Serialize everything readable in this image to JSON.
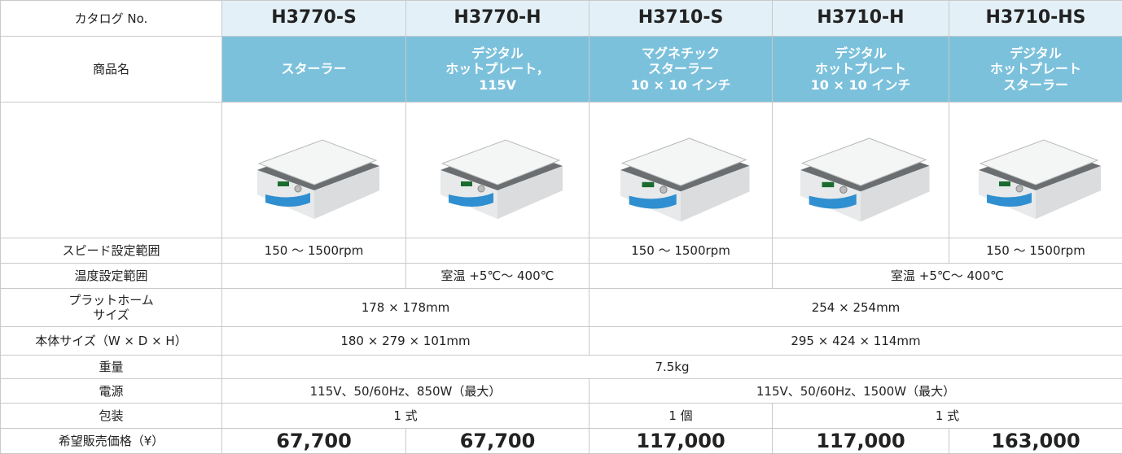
{
  "table": {
    "catalog": {
      "label": "カタログ No.",
      "items": [
        "H3770-S",
        "H3770-H",
        "H3710-S",
        "H3710-H",
        "H3710-HS"
      ]
    },
    "product_name": {
      "label": "商品名",
      "items": [
        "スターラー",
        "デジタル\nホットプレート，\n115V",
        "マグネチック\nスターラー\n10 × 10 インチ",
        "デジタル\nホットプレート\n10 × 10 インチ",
        "デジタル\nホットプレート\nスターラー"
      ]
    },
    "speed": {
      "label": "スピード設定範囲",
      "values": [
        "150 ～ 1500rpm",
        "150 ～ 1500rpm",
        "150 ～ 1500rpm"
      ]
    },
    "temperature": {
      "label": "温度設定範囲",
      "values": [
        "室温 +5℃～ 400℃",
        "室温 +5℃～ 400℃"
      ]
    },
    "platform": {
      "label": "プラットホーム\nサイズ",
      "values": [
        "178 × 178mm",
        "254 × 254mm"
      ]
    },
    "body_size": {
      "label": "本体サイズ（W × D × H）",
      "values": [
        "180 × 279 × 101mm",
        "295 × 424 × 114mm"
      ]
    },
    "weight": {
      "label": "重量",
      "values": [
        "7.5kg"
      ]
    },
    "power": {
      "label": "電源",
      "values": [
        "115V、50/60Hz、850W（最大）",
        "115V、50/60Hz、1500W（最大）"
      ]
    },
    "package": {
      "label": "包装",
      "values": [
        "1 式",
        "1 個",
        "1 式"
      ]
    },
    "price": {
      "label": "希望販売価格（¥）",
      "values": [
        "67,700",
        "67,700",
        "117,000",
        "117,000",
        "163,000"
      ]
    }
  }
}
